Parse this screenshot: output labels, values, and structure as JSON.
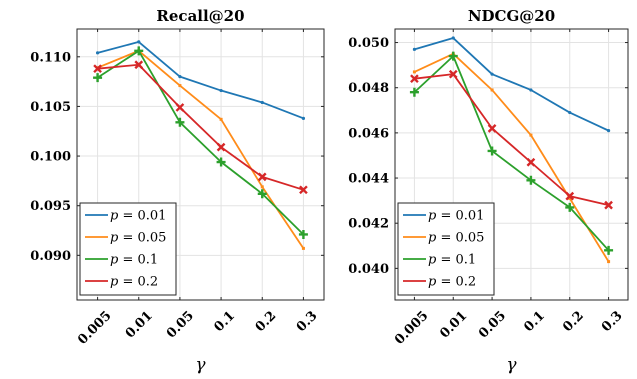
{
  "chart_data": [
    {
      "type": "line",
      "title": "Recall@20",
      "xlabel": "γ",
      "categories": [
        "0.005",
        "0.01",
        "0.05",
        "0.1",
        "0.2",
        "0.3"
      ],
      "ylim": [
        0.0855,
        0.1128
      ],
      "yticks": [
        "0.090",
        "0.095",
        "0.100",
        "0.105",
        "0.110"
      ],
      "grid": true,
      "legend_position": "bottom-left",
      "series": [
        {
          "name": "p = 0.01",
          "color": "#1f77b4",
          "marker": "circle",
          "values": [
            0.1104,
            0.1115,
            0.108,
            0.1066,
            0.1054,
            0.1038
          ]
        },
        {
          "name": "p = 0.05",
          "color": "#ff8c1a",
          "marker": "square",
          "values": [
            0.1089,
            0.1106,
            0.1071,
            0.1037,
            0.0969,
            0.0907
          ]
        },
        {
          "name": "p = 0.1",
          "color": "#2ca02c",
          "marker": "plus",
          "values": [
            0.1079,
            0.1106,
            0.1034,
            0.0994,
            0.0962,
            0.0921
          ]
        },
        {
          "name": "p = 0.2",
          "color": "#d62728",
          "marker": "x",
          "values": [
            0.1088,
            0.1092,
            0.1049,
            0.1009,
            0.0979,
            0.0966
          ]
        }
      ]
    },
    {
      "type": "line",
      "title": "NDCG@20",
      "xlabel": "γ",
      "categories": [
        "0.005",
        "0.01",
        "0.05",
        "0.1",
        "0.2",
        "0.3"
      ],
      "ylim": [
        0.0386,
        0.0506
      ],
      "yticks": [
        "0.040",
        "0.042",
        "0.044",
        "0.046",
        "0.048",
        "0.050"
      ],
      "grid": true,
      "legend_position": "bottom-left",
      "series": [
        {
          "name": "p = 0.01",
          "color": "#1f77b4",
          "marker": "circle",
          "values": [
            0.0497,
            0.0502,
            0.0486,
            0.0479,
            0.0469,
            0.0461
          ]
        },
        {
          "name": "p = 0.05",
          "color": "#ff8c1a",
          "marker": "square",
          "values": [
            0.0487,
            0.0495,
            0.0479,
            0.0459,
            0.0431,
            0.0403
          ]
        },
        {
          "name": "p = 0.1",
          "color": "#2ca02c",
          "marker": "plus",
          "values": [
            0.0478,
            0.0494,
            0.0452,
            0.0439,
            0.0427,
            0.0408
          ]
        },
        {
          "name": "p = 0.2",
          "color": "#d62728",
          "marker": "x",
          "values": [
            0.0484,
            0.0486,
            0.0462,
            0.0447,
            0.0432,
            0.0428
          ]
        }
      ]
    }
  ]
}
